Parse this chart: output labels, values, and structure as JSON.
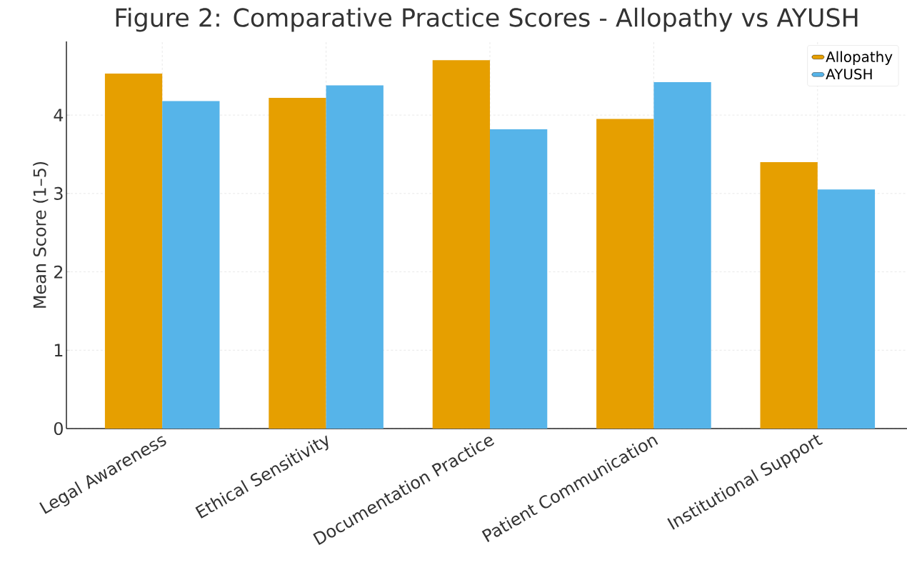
{
  "chart_data": {
    "type": "bar",
    "title": "Figure 2: Comparative Practice Scores - Allopathy vs AYUSH",
    "ylabel": "Mean Score (1–5)",
    "categories": [
      "Legal Awareness",
      "Ethical Sensitivity",
      "Documentation Practice",
      "Patient Communication",
      "Institutional Support"
    ],
    "series": [
      {
        "name": "Allopathy",
        "color": "#e69f00",
        "values": [
          4.53,
          4.22,
          4.7,
          3.95,
          3.4
        ]
      },
      {
        "name": "AYUSH",
        "color": "#56b4e9",
        "values": [
          4.18,
          4.38,
          3.82,
          4.42,
          3.05
        ]
      }
    ],
    "ylim": [
      0,
      4.94
    ],
    "yticks": [
      0,
      1,
      2,
      3,
      4
    ],
    "grid": true,
    "legend": "top right"
  }
}
